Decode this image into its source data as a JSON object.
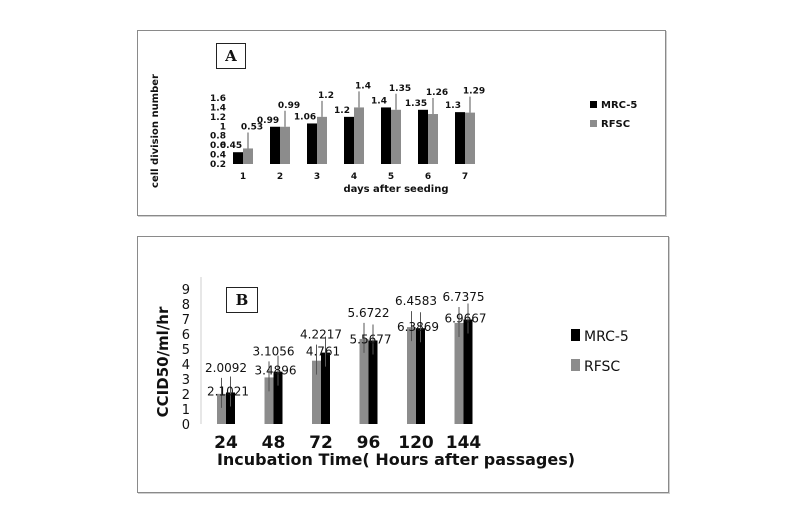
{
  "panels": {
    "a_label": "A",
    "b_label": "B"
  },
  "colors": {
    "mrc5": "#000000",
    "rfsc": "#8c8c8c",
    "text": "#111111",
    "error": "#555555"
  },
  "chart_data": [
    {
      "type": "bar",
      "panel": "A",
      "categories": [
        "1",
        "2",
        "3",
        "4",
        "5",
        "6",
        "7"
      ],
      "series": [
        {
          "name": "MRC-5",
          "values": [
            0.45,
            0.99,
            1.06,
            1.2,
            1.4,
            1.35,
            1.3
          ]
        },
        {
          "name": "RFSC",
          "values": [
            0.53,
            0.99,
            1.2,
            1.4,
            1.35,
            1.26,
            1.29
          ]
        }
      ],
      "data_labels": {
        "MRC-5": [
          "0.45",
          "0.99",
          "1.06",
          "1.2",
          "1.4",
          "1.35",
          "1.3"
        ],
        "RFSC": [
          "0.53",
          "0.99",
          "1.2",
          "1.4",
          "1.35",
          "1.26",
          "1.29"
        ]
      },
      "yticks": [
        "0.2",
        "0.4",
        "0.6",
        "0.8",
        "1",
        "1.2",
        "1.4",
        "1.6"
      ],
      "ylim": [
        0.2,
        1.6
      ],
      "xlabel": "days after seeding",
      "ylabel": "cell division number",
      "legend": "right",
      "grid": false
    },
    {
      "type": "bar",
      "panel": "B",
      "categories": [
        "24",
        "48",
        "72",
        "96",
        "120",
        "144"
      ],
      "series": [
        {
          "name": "MRC-5",
          "values": [
            2.1021,
            3.4896,
            4.761,
            5.5677,
            6.3869,
            6.9667
          ]
        },
        {
          "name": "RFSC",
          "values": [
            2.0092,
            3.1056,
            4.2217,
            5.6722,
            6.4583,
            6.7375
          ]
        }
      ],
      "data_labels": {
        "MRC-5": [
          "2.1021",
          "3.4896",
          "4.761",
          "5.5677",
          "6.3869",
          "6.9667"
        ],
        "RFSC": [
          "2.0092",
          "3.1056",
          "4.2217",
          "5.6722",
          "6.4583",
          "6.7375"
        ]
      },
      "yticks": [
        "0",
        "1",
        "2",
        "3",
        "4",
        "5",
        "6",
        "7",
        "8",
        "9"
      ],
      "ylim": [
        0,
        9
      ],
      "xlabel": "Incubation Time( Hours after passages)",
      "ylabel": "CCID50/ml/hr",
      "legend": "right",
      "grid": false,
      "error_bars": true
    }
  ]
}
